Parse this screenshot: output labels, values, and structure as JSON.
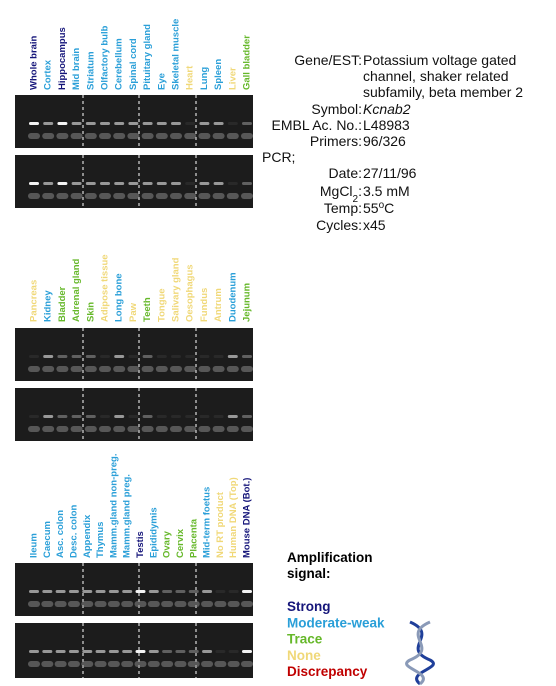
{
  "panels": [
    {
      "lanes": [
        {
          "label": "Whole brain",
          "color": "#15157a"
        },
        {
          "label": "Cortex",
          "color": "#2a9fd8"
        },
        {
          "label": "Hippocampus",
          "color": "#15157a"
        },
        {
          "label": "Mid brain",
          "color": "#2a9fd8"
        },
        {
          "label": "Striatum",
          "color": "#2a9fd8"
        },
        {
          "label": "Olfactory bulb",
          "color": "#2a9fd8"
        },
        {
          "label": "Cerebellum",
          "color": "#2a9fd8"
        },
        {
          "label": "Spinal cord",
          "color": "#2a9fd8"
        },
        {
          "label": "Pituitary gland",
          "color": "#2a9fd8"
        },
        {
          "label": "Eye",
          "color": "#2a9fd8"
        },
        {
          "label": "Skeletal muscle",
          "color": "#2a9fd8"
        },
        {
          "label": "Heart",
          "color": "#f0d878"
        },
        {
          "label": "Lung",
          "color": "#2a9fd8"
        },
        {
          "label": "Spleen",
          "color": "#2a9fd8"
        },
        {
          "label": "Liver",
          "color": "#f0d878"
        },
        {
          "label": "Gall bladder",
          "color": "#66b82a"
        }
      ]
    },
    {
      "lanes": [
        {
          "label": "Pancreas",
          "color": "#f0d878"
        },
        {
          "label": "Kidney",
          "color": "#2a9fd8"
        },
        {
          "label": "Bladder",
          "color": "#66b82a"
        },
        {
          "label": "Adrenal gland",
          "color": "#66b82a"
        },
        {
          "label": "Skin",
          "color": "#66b82a"
        },
        {
          "label": "Adipose tissue",
          "color": "#f0d878"
        },
        {
          "label": "Long bone",
          "color": "#2a9fd8"
        },
        {
          "label": "Paw",
          "color": "#f0d878"
        },
        {
          "label": "Teeth",
          "color": "#66b82a"
        },
        {
          "label": "Tongue",
          "color": "#f0d878"
        },
        {
          "label": "Salivary gland",
          "color": "#f0d878"
        },
        {
          "label": "Oesophagus",
          "color": "#f0d878"
        },
        {
          "label": "Fundus",
          "color": "#f0d878"
        },
        {
          "label": "Antrum",
          "color": "#f0d878"
        },
        {
          "label": "Duodenum",
          "color": "#2a9fd8"
        },
        {
          "label": "Jejunum",
          "color": "#66b82a"
        }
      ]
    },
    {
      "lanes": [
        {
          "label": "Ileum",
          "color": "#2a9fd8"
        },
        {
          "label": "Caecum",
          "color": "#2a9fd8"
        },
        {
          "label": "Asc. colon",
          "color": "#2a9fd8"
        },
        {
          "label": "Desc. colon",
          "color": "#2a9fd8"
        },
        {
          "label": "Appendix",
          "color": "#2a9fd8"
        },
        {
          "label": "Thymus",
          "color": "#2a9fd8"
        },
        {
          "label": "Mamm.gland non-preg.",
          "color": "#2a9fd8"
        },
        {
          "label": "Mamm.gland preg.",
          "color": "#2a9fd8"
        },
        {
          "label": "Testis",
          "color": "#15157a"
        },
        {
          "label": "Epididymis",
          "color": "#2a9fd8"
        },
        {
          "label": "Ovary",
          "color": "#66b82a"
        },
        {
          "label": "Cervix",
          "color": "#66b82a"
        },
        {
          "label": "Placenta",
          "color": "#66b82a"
        },
        {
          "label": "Mid-term foetus",
          "color": "#2a9fd8"
        },
        {
          "label": "No RT product",
          "color": "#f0d878"
        },
        {
          "label": "Human DNA (Top)",
          "color": "#f0d878"
        },
        {
          "label": "Mouse DNA (Bot.)",
          "color": "#15157a"
        }
      ]
    }
  ],
  "info": [
    {
      "label": "Gene/EST:",
      "value_lines": [
        "Potassium voltage gated",
        "channel, shaker related",
        "subfamily, beta member 2"
      ]
    },
    {
      "label": "Symbol:",
      "value_lines": [
        "Kcnab2"
      ],
      "italic": true
    },
    {
      "label": "EMBL Ac. No.:",
      "value_lines": [
        "L48983"
      ]
    },
    {
      "label": "Primers:",
      "value_lines": [
        "96/326"
      ]
    },
    {
      "heading": "PCR;"
    },
    {
      "label": "Date:",
      "value_lines": [
        "27/11/96"
      ]
    },
    {
      "label_parts": [
        {
          "text": "MgCl"
        },
        {
          "text": "2",
          "sub": true
        },
        {
          "text": ":"
        }
      ],
      "value_lines": [
        "3.5 mM"
      ]
    },
    {
      "label": "Temp:",
      "value_parts": [
        {
          "text": "55"
        },
        {
          "text": "o",
          "sup": true
        },
        {
          "text": "C"
        }
      ]
    },
    {
      "label": "Cycles:",
      "value_lines": [
        "x45"
      ]
    }
  ],
  "legend": {
    "title_lines": [
      "Amplification",
      "signal:"
    ],
    "items": [
      {
        "label": "Strong",
        "color": "#15157a"
      },
      {
        "label": "Moderate-weak",
        "color": "#2a9fd8"
      },
      {
        "label": "Trace",
        "color": "#66b82a"
      },
      {
        "label": "None",
        "color": "#f0d878"
      },
      {
        "label": "Discrepancy",
        "color": "#c00000"
      }
    ]
  }
}
